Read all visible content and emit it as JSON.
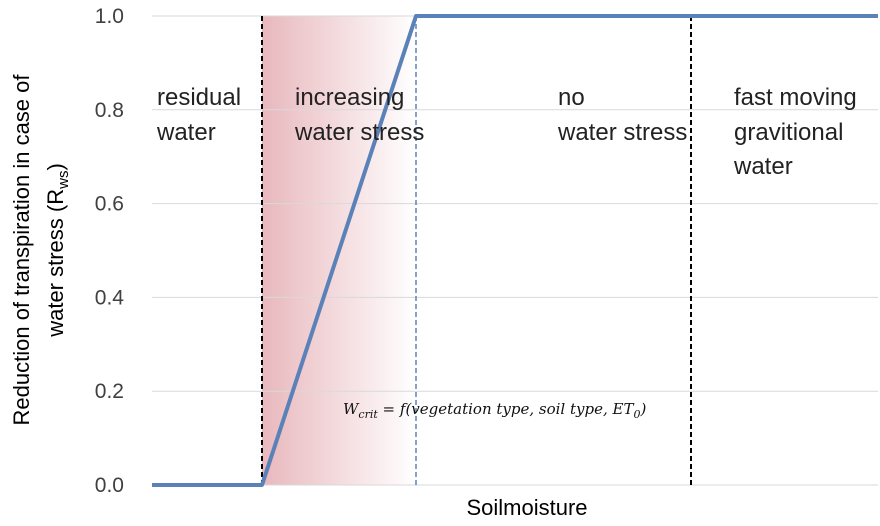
{
  "chart_data": {
    "type": "line",
    "title": "",
    "xlabel": "Soilmoisture",
    "ylabel_line1": "Reduction of transpiration in case of",
    "ylabel_line2": "water stress  (R",
    "ylabel_sub": "ws",
    "ylabel_close": ")",
    "ylim": [
      0,
      1.0
    ],
    "yticks": [
      "0.0",
      "0.2",
      "0.4",
      "0.6",
      "0.8",
      "1.0"
    ],
    "ytick_values": [
      0,
      0.2,
      0.4,
      0.6,
      0.8,
      1.0
    ],
    "grid": "horizontal",
    "series": [
      {
        "x": [
          0,
          1,
          2.4,
          6.6
        ],
        "y": [
          0,
          0,
          1.0,
          1.0
        ],
        "color": "#5b82b8"
      }
    ],
    "boundaries": [
      1,
      2.4,
      4.9
    ],
    "regions": [
      {
        "line1": "residual",
        "line2": "water",
        "line3": ""
      },
      {
        "line1": "increasing",
        "line2": "water stress",
        "line3": ""
      },
      {
        "line1": "no",
        "line2": "water stress",
        "line3": ""
      },
      {
        "line1": "fast moving",
        "line2": "gravitional",
        "line3": "water"
      }
    ],
    "annotation": "W_crit = f(vegetation type, soil type, ET_0)",
    "annotation_parts": {
      "w": "W",
      "w_sub": "crit",
      "body": " = f(vegetation type, soil type, ET",
      "et_sub": "0",
      "close": ")"
    },
    "colors": {
      "line": "#5b82b8",
      "shade_start": "#e8b8bd",
      "shade_end": "#ffffff",
      "grid": "#d9d9d9",
      "boundary_black": "#000000",
      "boundary_blue": "#5b82b8"
    }
  }
}
